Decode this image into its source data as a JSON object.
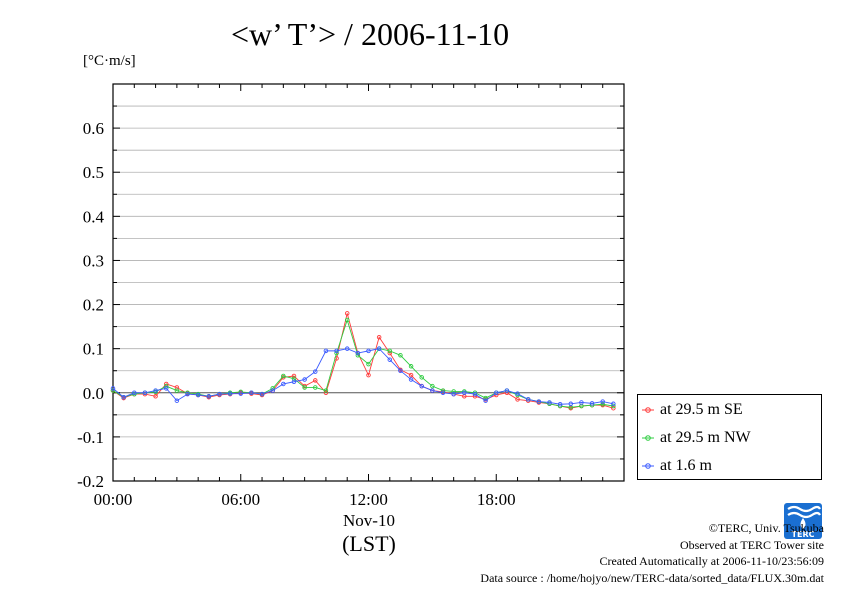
{
  "title": "<w’ T’> / 2006-11-10",
  "unit_label": "[°C·m/s]",
  "x_date_label": "Nov-10",
  "x_tz_label": "(LST)",
  "legend_entries": [
    "at 29.5 m SE",
    "at 29.5 m NW",
    "at 1.6 m"
  ],
  "credits": {
    "copyright": "©TERC, Univ. Tsukuba",
    "observed": "Observed at TERC Tower site",
    "created": "Created Automatically at 2006-11-10/23:56:09",
    "source": "Data source : /home/hojyo/new/TERC-data/sorted_data/FLUX.30m.dat"
  },
  "logo": {
    "text": "TERC",
    "color": "#1a6fd1"
  },
  "colors": {
    "se": "#ff3b3b",
    "nw": "#2ecc40",
    "low": "#3b5bff",
    "grid": "#b0b0b0",
    "zero": "#555555"
  },
  "chart_data": {
    "type": "line",
    "title": "<w’ T’> / 2006-11-10",
    "ylabel": "[°C·m/s]",
    "xlabel": "Nov-10 (LST)",
    "x_unit": "hours",
    "xlim": [
      0,
      24
    ],
    "ylim": [
      -0.2,
      0.7
    ],
    "y_ticks": [
      -0.2,
      -0.1,
      0.0,
      0.1,
      0.2,
      0.3,
      0.4,
      0.5,
      0.6
    ],
    "y_tick_labels": [
      "-0.2",
      "-0.1",
      "0.0",
      "0.1",
      "0.2",
      "0.3",
      "0.4",
      "0.5",
      "0.6"
    ],
    "x_ticks": [
      0,
      6,
      12,
      18
    ],
    "x_tick_labels": [
      "00:00",
      "06:00",
      "12:00",
      "18:00"
    ],
    "grid": true,
    "legend_position": "right-bottom (outside)",
    "x": [
      0.0,
      0.5,
      1.0,
      1.5,
      2.0,
      2.5,
      3.0,
      3.5,
      4.0,
      4.5,
      5.0,
      5.5,
      6.0,
      6.5,
      7.0,
      7.5,
      8.0,
      8.5,
      9.0,
      9.5,
      10.0,
      10.5,
      11.0,
      11.5,
      12.0,
      12.5,
      13.0,
      13.5,
      14.0,
      14.5,
      15.0,
      15.5,
      16.0,
      16.5,
      17.0,
      17.5,
      18.0,
      18.5,
      19.0,
      19.5,
      20.0,
      20.5,
      21.0,
      21.5,
      22.0,
      22.5,
      23.0,
      23.5
    ],
    "series": [
      {
        "name": "at 29.5 m SE",
        "values": [
          0.005,
          -0.012,
          -0.003,
          -0.003,
          -0.008,
          0.02,
          0.012,
          -0.002,
          -0.005,
          -0.01,
          -0.005,
          -0.003,
          0.0,
          -0.002,
          -0.005,
          0.005,
          0.035,
          0.038,
          0.015,
          0.028,
          0.0,
          0.078,
          0.18,
          0.09,
          0.04,
          0.126,
          0.09,
          0.052,
          0.04,
          0.015,
          0.005,
          0.002,
          -0.003,
          -0.008,
          -0.008,
          -0.015,
          -0.005,
          0.0,
          -0.015,
          -0.018,
          -0.022,
          -0.025,
          -0.03,
          -0.035,
          -0.03,
          -0.028,
          -0.028,
          -0.035
        ]
      },
      {
        "name": "at 29.5 m NW",
        "values": [
          0.005,
          -0.01,
          -0.003,
          0.0,
          0.002,
          0.015,
          0.005,
          0.0,
          -0.003,
          -0.008,
          -0.003,
          0.0,
          0.002,
          0.0,
          -0.003,
          0.01,
          0.038,
          0.032,
          0.012,
          0.012,
          0.005,
          0.09,
          0.165,
          0.085,
          0.065,
          0.1,
          0.095,
          0.085,
          0.06,
          0.035,
          0.015,
          0.005,
          0.003,
          0.003,
          0.0,
          -0.012,
          0.0,
          0.005,
          -0.005,
          -0.015,
          -0.02,
          -0.025,
          -0.03,
          -0.033,
          -0.03,
          -0.028,
          -0.026,
          -0.03
        ]
      },
      {
        "name": "at 1.6 m",
        "values": [
          0.01,
          -0.01,
          0.0,
          0.0,
          0.005,
          0.01,
          -0.018,
          -0.003,
          -0.005,
          -0.008,
          -0.003,
          -0.002,
          -0.002,
          0.0,
          -0.003,
          0.005,
          0.02,
          0.025,
          0.03,
          0.048,
          0.095,
          0.095,
          0.1,
          0.09,
          0.095,
          0.1,
          0.075,
          0.05,
          0.03,
          0.015,
          0.005,
          0.0,
          -0.003,
          0.0,
          -0.003,
          -0.018,
          0.0,
          0.005,
          -0.002,
          -0.015,
          -0.02,
          -0.022,
          -0.026,
          -0.025,
          -0.022,
          -0.024,
          -0.02,
          -0.025
        ]
      }
    ]
  }
}
